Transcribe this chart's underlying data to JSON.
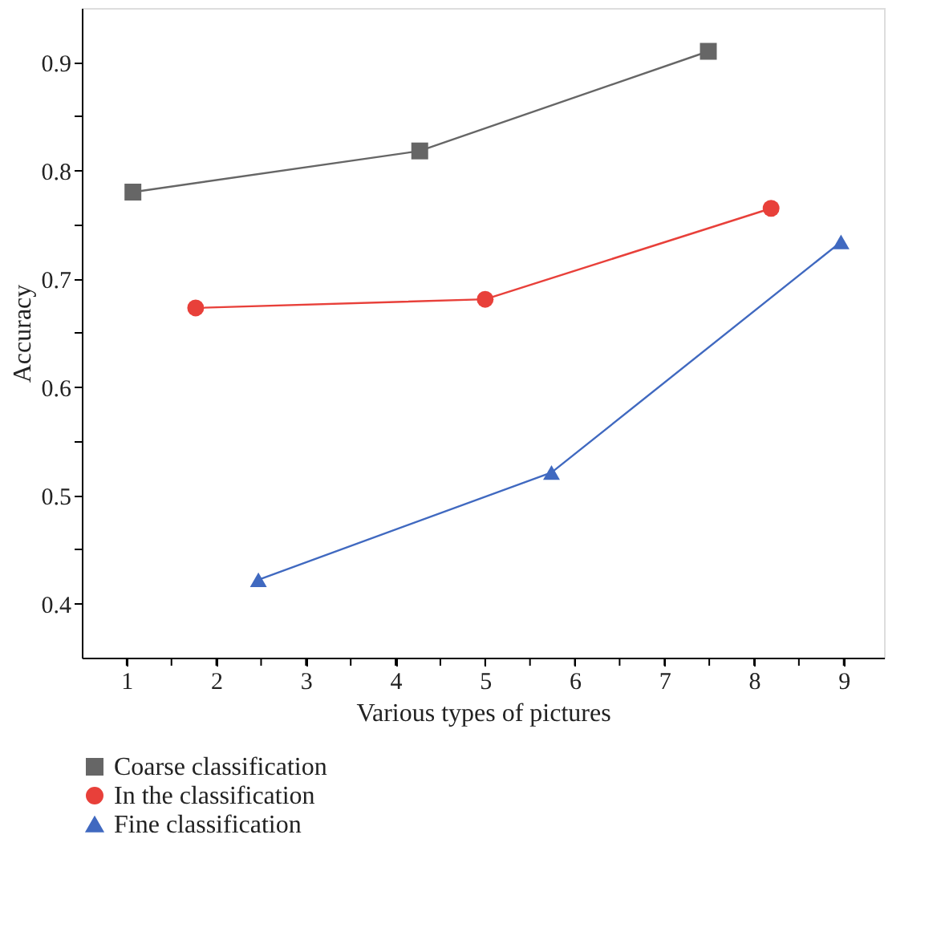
{
  "chart_data": {
    "type": "line",
    "xlabel": "Various types of pictures",
    "ylabel": "Accuracy",
    "xlim": [
      0.5,
      9.45
    ],
    "ylim": [
      0.35,
      0.95
    ],
    "xticks": [
      1,
      {
        "value": 1.5,
        "label": null
      },
      2,
      {
        "value": 2.5,
        "label": null
      },
      3,
      {
        "value": 3.5,
        "label": null
      },
      4,
      {
        "value": 4.5,
        "label": null
      },
      5,
      {
        "value": 5.5,
        "label": null
      },
      6,
      {
        "value": 6.5,
        "label": null
      },
      7,
      {
        "value": 7.5,
        "label": null
      },
      8,
      {
        "value": 8.5,
        "label": null
      },
      9
    ],
    "yticks": [
      0.4,
      {
        "value": 0.45,
        "label": null
      },
      0.5,
      {
        "value": 0.55,
        "label": null
      },
      0.6,
      {
        "value": 0.65,
        "label": null
      },
      0.7,
      {
        "value": 0.75,
        "label": null
      },
      0.8,
      {
        "value": 0.85,
        "label": null
      },
      0.9
    ],
    "grid": false,
    "legend": "bottom left",
    "line_style": "solid",
    "series": [
      {
        "name": "Coarse classification",
        "color": "#666666",
        "marker": "square",
        "x": [
          1.07,
          4.27,
          7.49
        ],
        "values": [
          0.78,
          0.818,
          0.91
        ]
      },
      {
        "name": "In the classification",
        "color": "#e8403a",
        "marker": "circle",
        "x": [
          1.77,
          5.0,
          8.19
        ],
        "values": [
          0.673,
          0.681,
          0.765
        ]
      },
      {
        "name": "Fine classification",
        "color": "#4069c0",
        "marker": "triangle",
        "x": [
          2.47,
          5.74,
          8.97
        ],
        "values": [
          0.422,
          0.521,
          0.734
        ]
      }
    ]
  }
}
